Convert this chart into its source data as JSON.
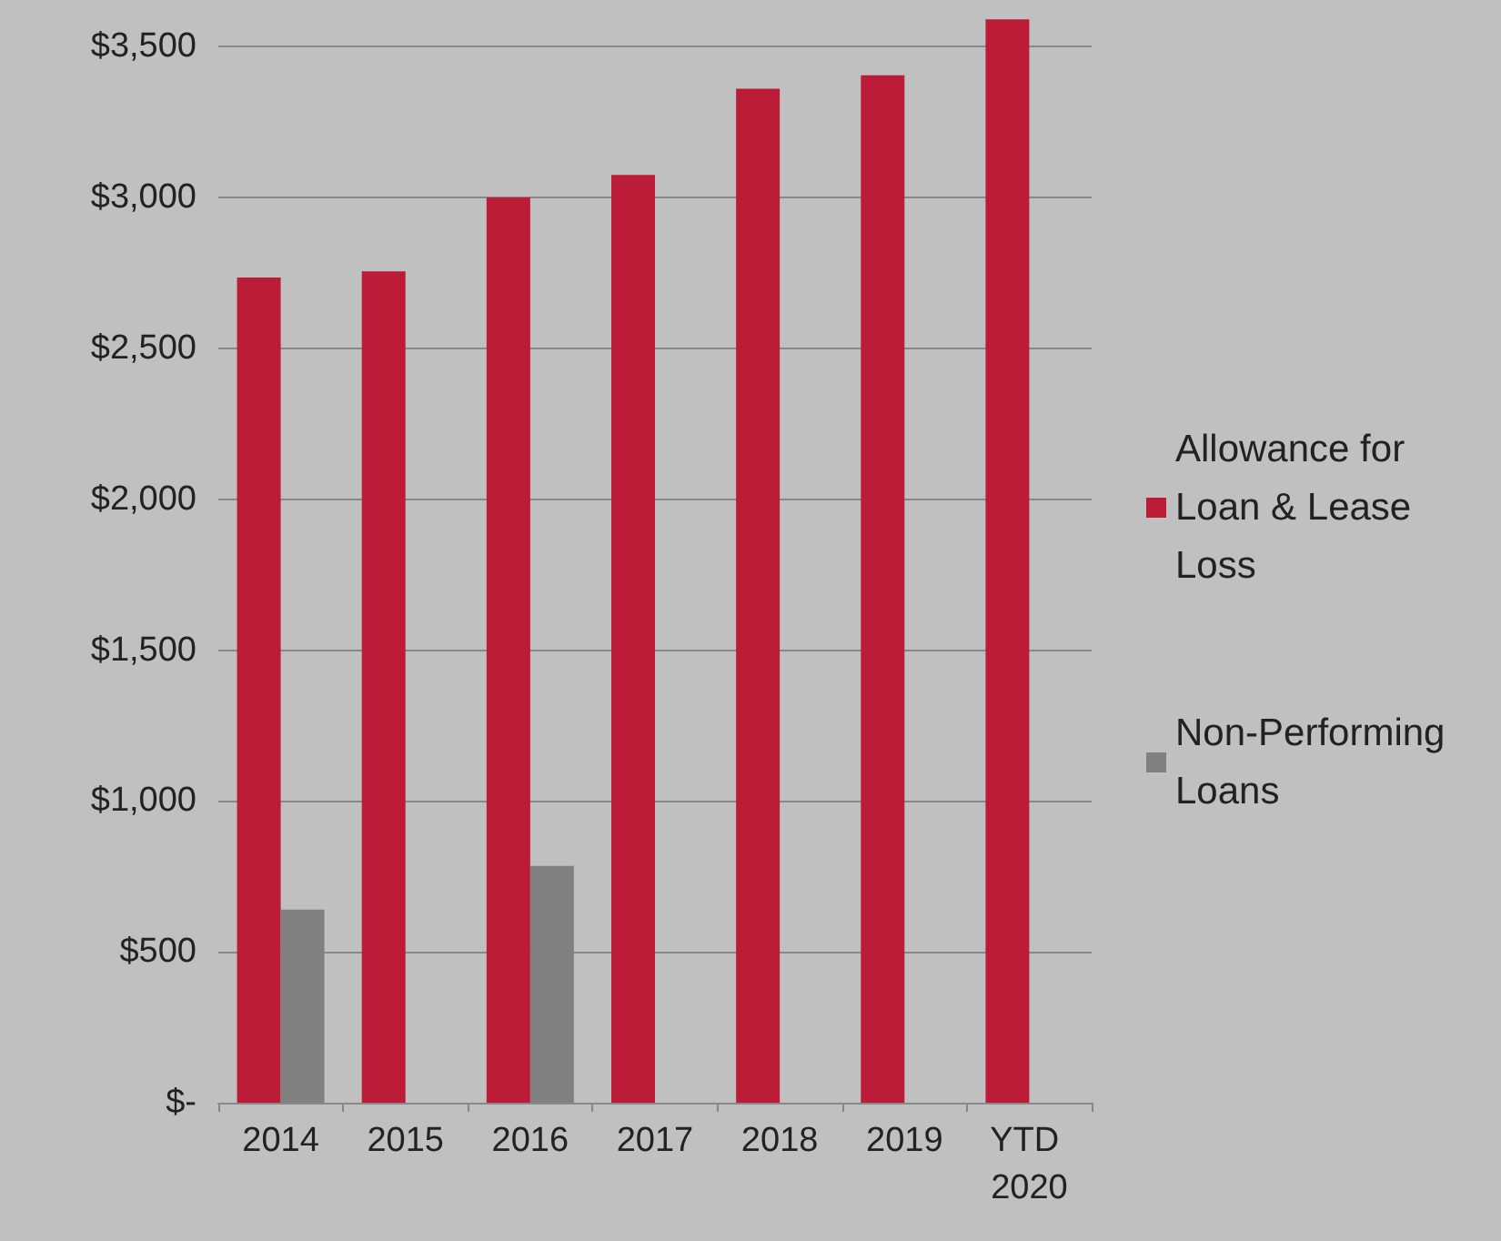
{
  "chart_data": {
    "type": "bar",
    "categories": [
      "2014",
      "2015",
      "2016",
      "2017",
      "2018",
      "2019",
      "YTD 2020"
    ],
    "series": [
      {
        "name": "Allowance for Loan & Lease Loss",
        "color": "#bc1c38",
        "values": [
          2735,
          2755,
          3000,
          3075,
          3360,
          3405,
          3590
        ]
      },
      {
        "name": "Non-Performing Loans",
        "color": "#808080",
        "values": [
          640,
          0,
          785,
          0,
          0,
          0,
          0
        ]
      }
    ],
    "ylim": [
      0,
      3600
    ],
    "yticks": [
      {
        "value": 0,
        "label": "$-"
      },
      {
        "value": 500,
        "label": "$500"
      },
      {
        "value": 1000,
        "label": "$1,000"
      },
      {
        "value": 1500,
        "label": "$1,500"
      },
      {
        "value": 2000,
        "label": "$2,000"
      },
      {
        "value": 2500,
        "label": "$2,500"
      },
      {
        "value": 3000,
        "label": "$3,000"
      },
      {
        "value": 3500,
        "label": "$3,500"
      }
    ],
    "grid": "y",
    "legend": "right"
  }
}
